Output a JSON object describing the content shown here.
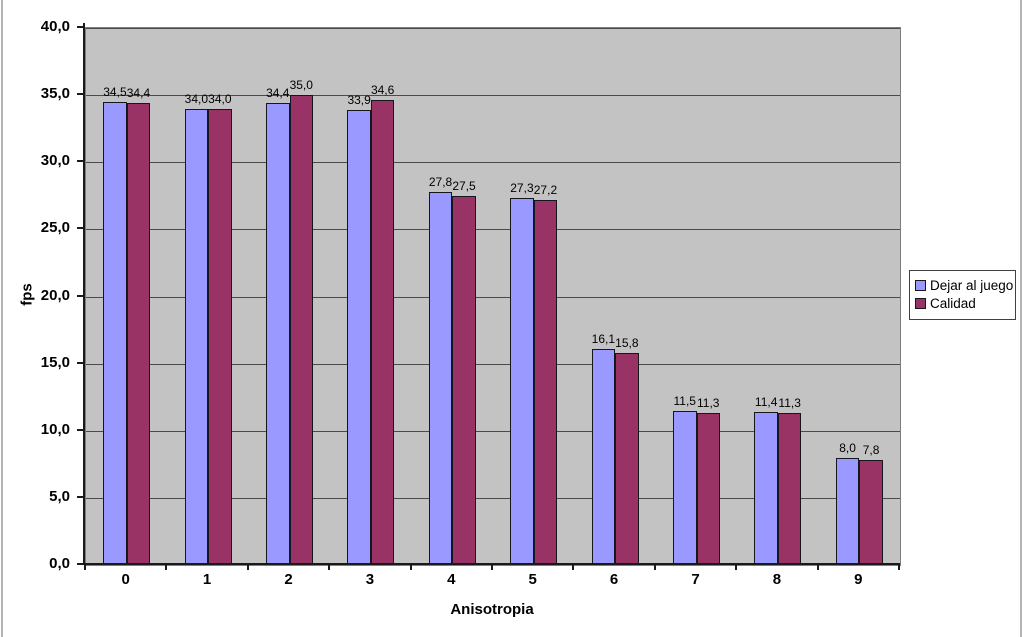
{
  "chart_data": {
    "type": "bar",
    "title": "",
    "xlabel": "Anisotropia",
    "ylabel": "fps",
    "categories": [
      "0",
      "1",
      "2",
      "3",
      "4",
      "5",
      "6",
      "7",
      "8",
      "9"
    ],
    "series": [
      {
        "name": "Dejar al juego",
        "color": "#9999FF",
        "values": [
          34.5,
          34.0,
          34.4,
          33.9,
          27.8,
          27.3,
          16.1,
          11.5,
          11.4,
          8.0
        ],
        "labels": [
          "34,5",
          "34,0",
          "34,4",
          "33,9",
          "27,8",
          "27,3",
          "16,1",
          "11,5",
          "11,4",
          "8,0"
        ]
      },
      {
        "name": "Calidad",
        "color": "#993366",
        "values": [
          34.4,
          34.0,
          35.0,
          34.6,
          27.5,
          27.2,
          15.8,
          11.3,
          11.3,
          7.8
        ],
        "labels": [
          "34,4",
          "34,0",
          "35,0",
          "34,6",
          "27,5",
          "27,2",
          "15,8",
          "11,3",
          "11,3",
          "7,8"
        ]
      }
    ],
    "ylim": [
      0,
      40
    ],
    "ytick_step": 5,
    "ytick_labels": [
      "0,0",
      "5,0",
      "10,0",
      "15,0",
      "20,0",
      "25,0",
      "30,0",
      "35,0",
      "40,0"
    ],
    "grid": true,
    "legend_position": "right",
    "plot_bg": "#C0C0C0",
    "decimal_separator": ","
  }
}
